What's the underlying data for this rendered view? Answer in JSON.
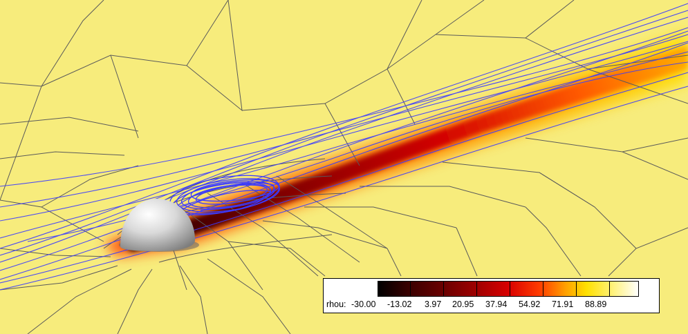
{
  "colors": {
    "background": "#f7ec7c",
    "mesh": "#5a5a5a",
    "streamline": "#3b3bff",
    "sphere_highlight": "#ffffff",
    "sphere_shadow": "#8c8c8c"
  },
  "legend": {
    "variable_label": "rhou:",
    "tick_labels": [
      "-30.00",
      "-13.02",
      "3.97",
      "20.95",
      "37.94",
      "54.92",
      "71.91",
      "88.89"
    ],
    "color_stops": [
      "#000000",
      "#2a0000",
      "#5a0000",
      "#8e0000",
      "#c00000",
      "#e81e00",
      "#ff6a00",
      "#ffb000",
      "#ffe800",
      "#fff47a",
      "#fffbd0",
      "#ffffff"
    ]
  }
}
